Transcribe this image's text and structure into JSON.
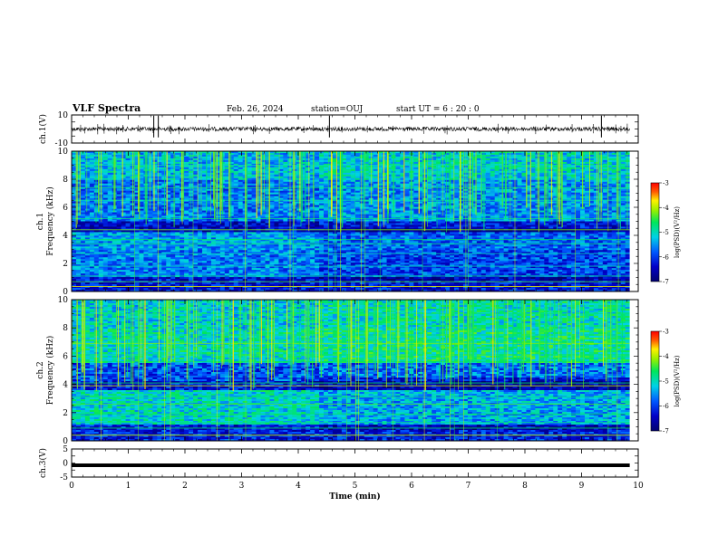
{
  "header": {
    "title": "VLF Spectra",
    "date": "Feb. 26, 2024",
    "station": "station=OUJ",
    "start": "start  UT =   6 : 20 : 0"
  },
  "chart_data": [
    {
      "id": "ch1-waveform",
      "type": "line",
      "ylabel": "ch.1(V)",
      "ylim": [
        -10,
        10
      ],
      "yticks": [
        "10",
        "-10"
      ],
      "baseline": 0,
      "spikes_min": [
        1.45,
        1.53,
        4.55,
        9.35
      ]
    },
    {
      "id": "ch1-spectrogram",
      "type": "heatmap",
      "ylabel": "ch.1",
      "ylabel2": "Frequency  (kHz)",
      "ylim": [
        0,
        10
      ],
      "yticks": [
        "0",
        "2",
        "4",
        "6",
        "8",
        "10"
      ],
      "colorbar": {
        "label": "log(PSD)(V²/Hz)",
        "range": [
          -7,
          -3
        ],
        "ticks": [
          "-3",
          "-4",
          "-5",
          "-6",
          "-7"
        ]
      }
    },
    {
      "id": "ch2-spectrogram",
      "type": "heatmap",
      "ylabel": "ch.2",
      "ylabel2": "Frequency  (kHz)",
      "ylim": [
        0,
        10
      ],
      "yticks": [
        "0",
        "2",
        "4",
        "6",
        "8",
        "10"
      ],
      "colorbar": {
        "label": "log(PSD)(V²/Hz)",
        "range": [
          -7,
          -3
        ],
        "ticks": [
          "-3",
          "-4",
          "-5",
          "-6",
          "-7"
        ]
      }
    },
    {
      "id": "ch3-waveform",
      "type": "line",
      "ylabel": "ch.3(V)",
      "ylim": [
        -5,
        5
      ],
      "yticks": [
        "5",
        "0",
        "-5"
      ],
      "level": -0.8
    }
  ],
  "xaxis": {
    "label": "Time  (min)",
    "range": [
      0,
      10
    ],
    "ticks": [
      "0",
      "1",
      "2",
      "3",
      "4",
      "5",
      "6",
      "7",
      "8",
      "9",
      "10"
    ],
    "data_end": 9.85
  }
}
